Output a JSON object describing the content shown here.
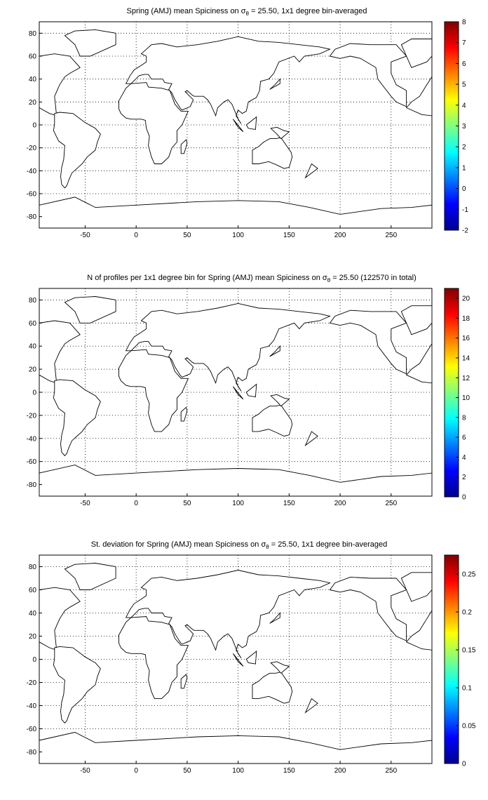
{
  "chart_data": [
    {
      "type": "heatmap",
      "title": "Spring (AMJ) mean Spiciness on σθ = 25.50, 1x1 degree bin-averaged",
      "title_parts": {
        "before": "Spring (AMJ) mean Spiciness on ",
        "symbol": "σ",
        "subscript": "θ",
        "after": " = 25.50, 1x1 degree bin-averaged"
      },
      "x_ticks": [
        "-50",
        "0",
        "50",
        "100",
        "150",
        "200",
        "250"
      ],
      "y_ticks": [
        "80",
        "60",
        "40",
        "20",
        "0",
        "-20",
        "-40",
        "-60",
        "-80"
      ],
      "xlim": [
        -95,
        290
      ],
      "ylim": [
        -90,
        90
      ],
      "grid": true,
      "colorbar": {
        "min": -2,
        "max": 8,
        "ticks": [
          "8",
          "7",
          "6",
          "5",
          "4",
          "3",
          "2",
          "1",
          "0",
          "-1",
          "-2"
        ],
        "colormap": "jet"
      }
    },
    {
      "type": "heatmap",
      "title": "N of profiles per 1x1 degree bin for Spring (AMJ) mean Spiciness on σθ = 25.50 (122570 in total)",
      "title_parts": {
        "before": "N of profiles per 1x1 degree bin for Spring (AMJ) mean Spiciness on ",
        "symbol": "σ",
        "subscript": "θ",
        "after": " = 25.50 (122570 in total)"
      },
      "total_profiles": 122570,
      "x_ticks": [
        "-50",
        "0",
        "50",
        "100",
        "150",
        "200",
        "250"
      ],
      "y_ticks": [
        "80",
        "60",
        "40",
        "20",
        "0",
        "-20",
        "-40",
        "-60",
        "-80"
      ],
      "xlim": [
        -95,
        290
      ],
      "ylim": [
        -90,
        90
      ],
      "grid": true,
      "colorbar": {
        "min": 0,
        "max": 21,
        "ticks": [
          "20",
          "18",
          "16",
          "14",
          "12",
          "10",
          "8",
          "6",
          "4",
          "2",
          "0"
        ],
        "colormap": "jet"
      }
    },
    {
      "type": "heatmap",
      "title": "St. deviation for Spring (AMJ) mean Spiciness on σθ = 25.50, 1x1 degree bin-averaged",
      "title_parts": {
        "before": "St. deviation for Spring (AMJ) mean Spiciness on ",
        "symbol": "σ",
        "subscript": "θ",
        "after": " = 25.50, 1x1 degree bin-averaged"
      },
      "x_ticks": [
        "-50",
        "0",
        "50",
        "100",
        "150",
        "200",
        "250"
      ],
      "y_ticks": [
        "80",
        "60",
        "40",
        "20",
        "0",
        "-20",
        "-40",
        "-60",
        "-80"
      ],
      "xlim": [
        -95,
        290
      ],
      "ylim": [
        -90,
        90
      ],
      "grid": true,
      "colorbar": {
        "min": 0,
        "max": 0.275,
        "ticks": [
          "0.25",
          "0.2",
          "0.15",
          "0.1",
          "0.05",
          "0"
        ],
        "colormap": "jet"
      }
    }
  ]
}
